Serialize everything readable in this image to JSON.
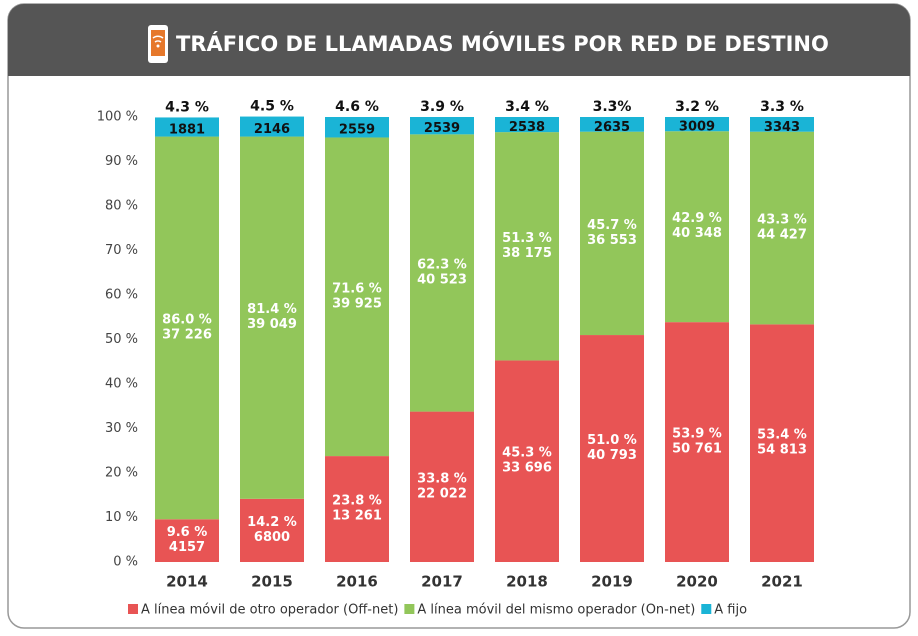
{
  "chart_data": {
    "type": "stacked_bar",
    "title": "TRÁFICO DE LLAMADAS MÓVILES POR RED DE DESTINO",
    "categories": [
      "2014",
      "2015",
      "2016",
      "2017",
      "2018",
      "2019",
      "2020",
      "2021"
    ],
    "ylim": [
      0,
      100
    ],
    "yticks": [
      {
        "value": 0,
        "label": "0 %"
      },
      {
        "value": 10,
        "label": "10 %"
      },
      {
        "value": 20,
        "label": "20 %"
      },
      {
        "value": 30,
        "label": "30 %"
      },
      {
        "value": 40,
        "label": "40 %"
      },
      {
        "value": 50,
        "label": "50 %"
      },
      {
        "value": 60,
        "label": "60 %"
      },
      {
        "value": 70,
        "label": "70 %"
      },
      {
        "value": 80,
        "label": "80 %"
      },
      {
        "value": 90,
        "label": "90 %"
      },
      {
        "value": 100,
        "label": "100 %"
      }
    ],
    "legend": "bottom",
    "series": [
      {
        "name": "A línea móvil de otro operador (Off-net)",
        "color": "#e85454",
        "label_color": "#ffffff",
        "values": [
          9.6,
          14.2,
          23.8,
          33.8,
          45.3,
          51.0,
          53.9,
          53.4
        ],
        "value_labels": [
          "9.6 %",
          "14.2 %",
          "23.8 %",
          "33.8 %",
          "45.3 %",
          "51.0 %",
          "53.9 %",
          "53.4 %"
        ],
        "count_labels": [
          "4157",
          "6800",
          "13 261",
          "22 022",
          "33 696",
          "40 793",
          "50 761",
          "54 813"
        ]
      },
      {
        "name": "A línea móvil del mismo operador (On-net)",
        "color": "#92c65a",
        "label_color": "#ffffff",
        "values": [
          86.0,
          81.4,
          71.6,
          62.3,
          51.3,
          45.7,
          42.9,
          43.3
        ],
        "value_labels": [
          "86.0 %",
          "81.4 %",
          "71.6 %",
          "62.3 %",
          "51.3 %",
          "45.7 %",
          "42.9 %",
          "43.3 %"
        ],
        "count_labels": [
          "37 226",
          "39 049",
          "39 925",
          "40 523",
          "38 175",
          "36 553",
          "40 348",
          "44 427"
        ]
      },
      {
        "name": "A fijo",
        "color": "#1ab4d6",
        "label_color": "#111111",
        "values": [
          4.3,
          4.5,
          4.6,
          3.9,
          3.4,
          3.3,
          3.2,
          3.3
        ],
        "value_labels": [
          "4.3 %",
          "4.5 %",
          "4.6 %",
          "3.9 %",
          "3.4 %",
          "3.3%",
          "3.2 %",
          "3.3 %"
        ],
        "count_labels": [
          "1881",
          "2146",
          "2559",
          "2539",
          "2538",
          "2635",
          "3009",
          "3343"
        ]
      }
    ]
  }
}
